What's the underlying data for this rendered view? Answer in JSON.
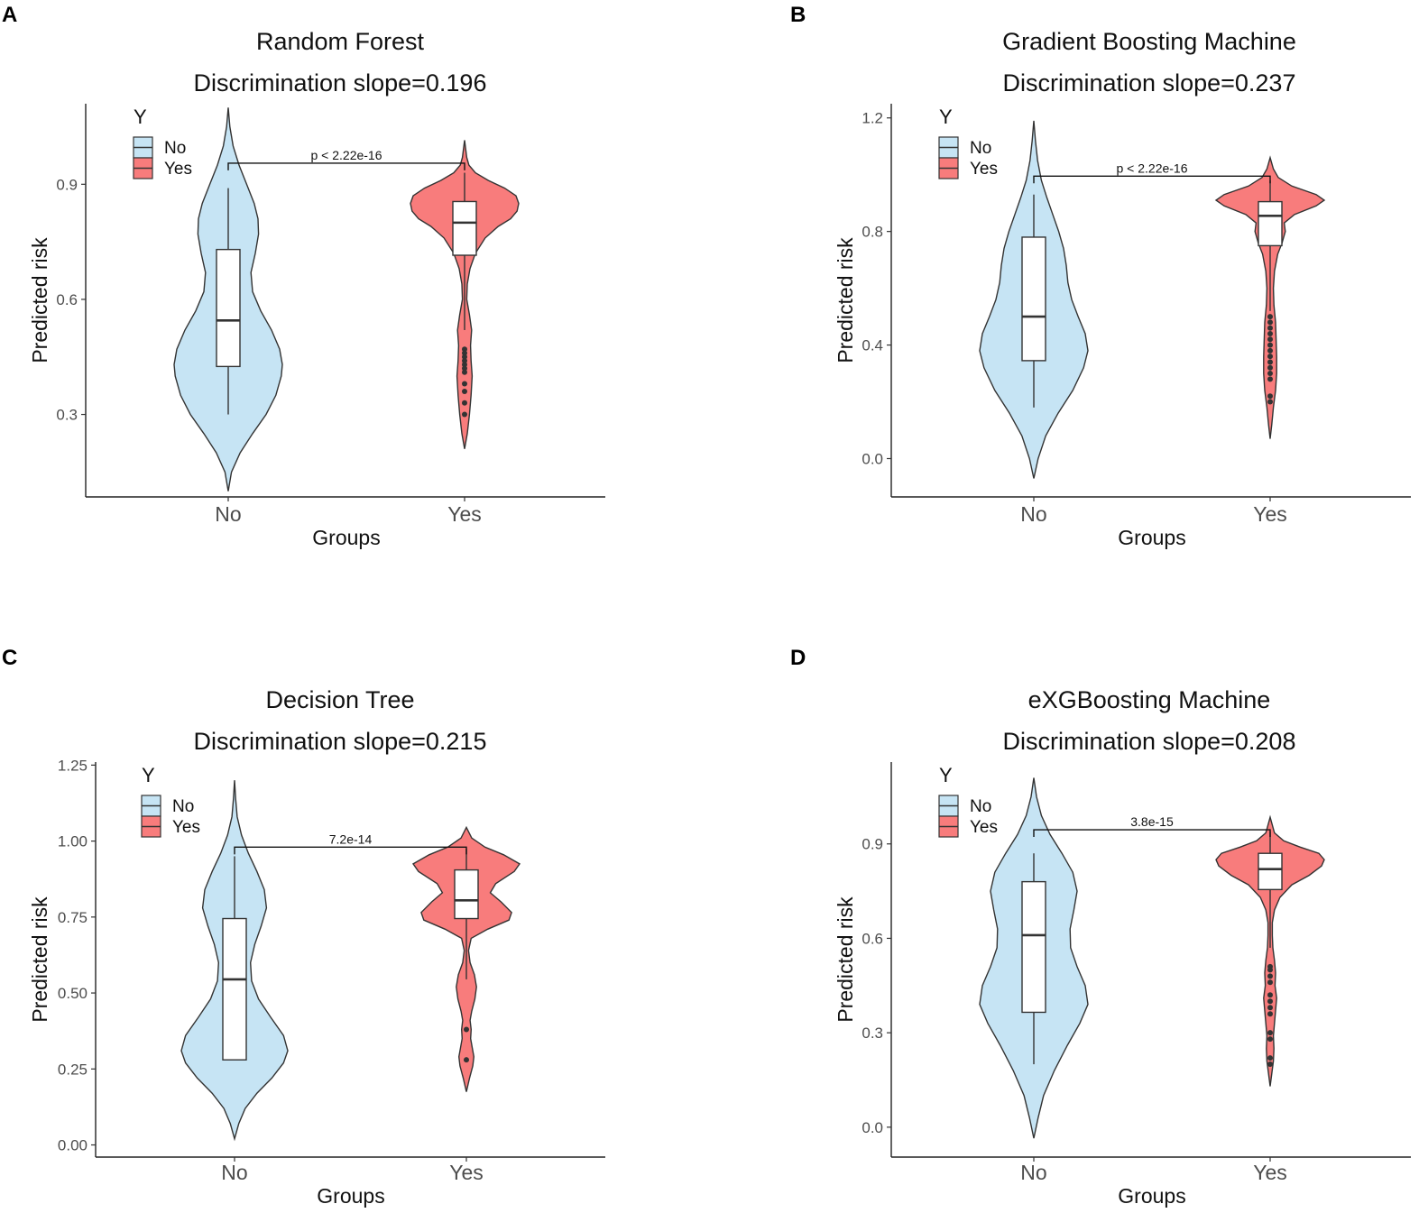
{
  "colors": {
    "No": "#c6e4f4",
    "Yes": "#f87c7c"
  },
  "chart_data": [
    {
      "type": "violin",
      "panel": "A",
      "title": "Random Forest",
      "subtitle": "Discrimination slope=0.196",
      "xlabel": "Groups",
      "ylabel": "Predicted risk",
      "categories": [
        "No",
        "Yes"
      ],
      "ylim": [
        0.085,
        1.11
      ],
      "yticks": [
        0.3,
        0.6,
        0.9
      ],
      "ytick_labels": [
        "0.3",
        "0.6",
        "0.9"
      ],
      "legend": {
        "title": "Y",
        "entries": [
          "No",
          "Yes"
        ]
      },
      "comparison": {
        "label": "p < 2.22e-16",
        "y": 0.955
      },
      "groups": [
        {
          "name": "No",
          "box": {
            "whisker_low": 0.3,
            "q1": 0.425,
            "median": 0.545,
            "q3": 0.73,
            "whisker_high": 0.89
          },
          "outliers": [],
          "density": [
            [
              0.1,
              0
            ],
            [
              0.15,
              0.06
            ],
            [
              0.2,
              0.22
            ],
            [
              0.25,
              0.45
            ],
            [
              0.3,
              0.7
            ],
            [
              0.35,
              0.88
            ],
            [
              0.4,
              0.98
            ],
            [
              0.43,
              1.0
            ],
            [
              0.47,
              0.95
            ],
            [
              0.52,
              0.8
            ],
            [
              0.57,
              0.6
            ],
            [
              0.62,
              0.45
            ],
            [
              0.67,
              0.42
            ],
            [
              0.72,
              0.5
            ],
            [
              0.77,
              0.56
            ],
            [
              0.81,
              0.55
            ],
            [
              0.85,
              0.48
            ],
            [
              0.9,
              0.34
            ],
            [
              0.95,
              0.2
            ],
            [
              1.0,
              0.09
            ],
            [
              1.05,
              0.03
            ],
            [
              1.1,
              0
            ]
          ]
        },
        {
          "name": "Yes",
          "box": {
            "whisker_low": 0.52,
            "q1": 0.715,
            "median": 0.8,
            "q3": 0.855,
            "whisker_high": 0.93
          },
          "outliers": [
            0.47,
            0.46,
            0.45,
            0.44,
            0.43,
            0.42,
            0.41,
            0.38,
            0.36,
            0.33,
            0.3
          ],
          "density": [
            [
              0.21,
              0
            ],
            [
              0.25,
              0.05
            ],
            [
              0.3,
              0.09
            ],
            [
              0.35,
              0.12
            ],
            [
              0.4,
              0.14
            ],
            [
              0.44,
              0.12
            ],
            [
              0.48,
              0.11
            ],
            [
              0.52,
              0.13
            ],
            [
              0.56,
              0.09
            ],
            [
              0.6,
              0.04
            ],
            [
              0.64,
              0.05
            ],
            [
              0.68,
              0.1
            ],
            [
              0.72,
              0.2
            ],
            [
              0.76,
              0.38
            ],
            [
              0.79,
              0.62
            ],
            [
              0.81,
              0.85
            ],
            [
              0.83,
              0.97
            ],
            [
              0.85,
              1.0
            ],
            [
              0.87,
              0.95
            ],
            [
              0.89,
              0.74
            ],
            [
              0.91,
              0.44
            ],
            [
              0.93,
              0.2
            ],
            [
              0.95,
              0.08
            ],
            [
              0.97,
              0.04
            ],
            [
              1.015,
              0
            ]
          ]
        }
      ]
    },
    {
      "type": "violin",
      "panel": "B",
      "title": "Gradient Boosting Machine",
      "subtitle": "Discrimination slope=0.237",
      "xlabel": "Groups",
      "ylabel": "Predicted risk",
      "categories": [
        "No",
        "Yes"
      ],
      "ylim": [
        -0.135,
        1.25
      ],
      "yticks": [
        0.0,
        0.4,
        0.8,
        1.2
      ],
      "ytick_labels": [
        "0.0",
        "0.4",
        "0.8",
        "1.2"
      ],
      "legend": {
        "title": "Y",
        "entries": [
          "No",
          "Yes"
        ]
      },
      "comparison": {
        "label": "p < 2.22e-16",
        "y": 0.995
      },
      "groups": [
        {
          "name": "No",
          "box": {
            "whisker_low": 0.18,
            "q1": 0.345,
            "median": 0.5,
            "q3": 0.78,
            "whisker_high": 0.93
          },
          "outliers": [],
          "density": [
            [
              -0.07,
              0
            ],
            [
              0.0,
              0.08
            ],
            [
              0.08,
              0.22
            ],
            [
              0.16,
              0.45
            ],
            [
              0.24,
              0.72
            ],
            [
              0.32,
              0.92
            ],
            [
              0.38,
              1.0
            ],
            [
              0.44,
              0.95
            ],
            [
              0.5,
              0.82
            ],
            [
              0.56,
              0.7
            ],
            [
              0.62,
              0.63
            ],
            [
              0.68,
              0.6
            ],
            [
              0.74,
              0.55
            ],
            [
              0.8,
              0.46
            ],
            [
              0.86,
              0.35
            ],
            [
              0.92,
              0.24
            ],
            [
              0.98,
              0.14
            ],
            [
              1.05,
              0.07
            ],
            [
              1.12,
              0.03
            ],
            [
              1.19,
              0
            ]
          ]
        },
        {
          "name": "Yes",
          "box": {
            "whisker_low": 0.52,
            "q1": 0.75,
            "median": 0.855,
            "q3": 0.905,
            "whisker_high": 0.98
          },
          "outliers": [
            0.5,
            0.48,
            0.46,
            0.44,
            0.42,
            0.4,
            0.38,
            0.36,
            0.34,
            0.32,
            0.3,
            0.28,
            0.22,
            0.2
          ],
          "density": [
            [
              0.07,
              0
            ],
            [
              0.12,
              0.03
            ],
            [
              0.18,
              0.06
            ],
            [
              0.24,
              0.1
            ],
            [
              0.3,
              0.12
            ],
            [
              0.36,
              0.12
            ],
            [
              0.42,
              0.11
            ],
            [
              0.48,
              0.1
            ],
            [
              0.54,
              0.07
            ],
            [
              0.6,
              0.06
            ],
            [
              0.66,
              0.08
            ],
            [
              0.72,
              0.14
            ],
            [
              0.76,
              0.22
            ],
            [
              0.8,
              0.28
            ],
            [
              0.83,
              0.26
            ],
            [
              0.86,
              0.45
            ],
            [
              0.89,
              0.85
            ],
            [
              0.91,
              1.0
            ],
            [
              0.93,
              0.85
            ],
            [
              0.96,
              0.4
            ],
            [
              0.99,
              0.15
            ],
            [
              1.02,
              0.06
            ],
            [
              1.06,
              0
            ]
          ]
        }
      ]
    },
    {
      "type": "violin",
      "panel": "C",
      "title": "Decision Tree",
      "subtitle": "Discrimination slope=0.215",
      "xlabel": "Groups",
      "ylabel": "Predicted risk",
      "categories": [
        "No",
        "Yes"
      ],
      "ylim": [
        -0.04,
        1.26
      ],
      "yticks": [
        0.0,
        0.25,
        0.5,
        0.75,
        1.0,
        1.25
      ],
      "ytick_labels": [
        "0.00",
        "0.25",
        "0.50",
        "0.75",
        "1.00",
        "1.25"
      ],
      "legend": {
        "title": "Y",
        "entries": [
          "No",
          "Yes"
        ]
      },
      "comparison": {
        "label": "7.2e-14",
        "y": 0.98
      },
      "groups": [
        {
          "name": "No",
          "box": {
            "whisker_low": 0.28,
            "q1": 0.28,
            "median": 0.545,
            "q3": 0.745,
            "whisker_high": 0.95
          },
          "outliers": [],
          "density": [
            [
              0.02,
              0
            ],
            [
              0.07,
              0.08
            ],
            [
              0.12,
              0.2
            ],
            [
              0.17,
              0.42
            ],
            [
              0.22,
              0.7
            ],
            [
              0.27,
              0.92
            ],
            [
              0.31,
              1.0
            ],
            [
              0.36,
              0.92
            ],
            [
              0.42,
              0.68
            ],
            [
              0.48,
              0.45
            ],
            [
              0.54,
              0.32
            ],
            [
              0.6,
              0.3
            ],
            [
              0.66,
              0.38
            ],
            [
              0.72,
              0.5
            ],
            [
              0.78,
              0.6
            ],
            [
              0.84,
              0.56
            ],
            [
              0.9,
              0.42
            ],
            [
              0.96,
              0.26
            ],
            [
              1.02,
              0.13
            ],
            [
              1.08,
              0.05
            ],
            [
              1.14,
              0.02
            ],
            [
              1.2,
              0
            ]
          ]
        },
        {
          "name": "Yes",
          "box": {
            "whisker_low": 0.545,
            "q1": 0.745,
            "median": 0.805,
            "q3": 0.905,
            "whisker_high": 0.975
          },
          "outliers": [
            0.38,
            0.28
          ],
          "density": [
            [
              0.175,
              0
            ],
            [
              0.22,
              0.06
            ],
            [
              0.26,
              0.12
            ],
            [
              0.29,
              0.14
            ],
            [
              0.32,
              0.11
            ],
            [
              0.35,
              0.08
            ],
            [
              0.38,
              0.09
            ],
            [
              0.41,
              0.07
            ],
            [
              0.44,
              0.1
            ],
            [
              0.48,
              0.16
            ],
            [
              0.52,
              0.19
            ],
            [
              0.56,
              0.15
            ],
            [
              0.6,
              0.07
            ],
            [
              0.64,
              0.04
            ],
            [
              0.68,
              0.09
            ],
            [
              0.71,
              0.4
            ],
            [
              0.74,
              0.8
            ],
            [
              0.765,
              0.85
            ],
            [
              0.8,
              0.65
            ],
            [
              0.83,
              0.45
            ],
            [
              0.86,
              0.55
            ],
            [
              0.9,
              0.9
            ],
            [
              0.925,
              1.0
            ],
            [
              0.955,
              0.7
            ],
            [
              0.98,
              0.35
            ],
            [
              1.01,
              0.1
            ],
            [
              1.045,
              0
            ]
          ]
        }
      ]
    },
    {
      "type": "violin",
      "panel": "D",
      "title": "eXGBoosting Machine",
      "subtitle": "Discrimination slope=0.208",
      "xlabel": "Groups",
      "ylabel": "Predicted risk",
      "categories": [
        "No",
        "Yes"
      ],
      "ylim": [
        -0.095,
        1.16
      ],
      "yticks": [
        0.0,
        0.3,
        0.6,
        0.9
      ],
      "ytick_labels": [
        "0.0",
        "0.3",
        "0.6",
        "0.9"
      ],
      "legend": {
        "title": "Y",
        "entries": [
          "No",
          "Yes"
        ]
      },
      "comparison": {
        "label": "3.8e-15",
        "y": 0.945
      },
      "groups": [
        {
          "name": "No",
          "box": {
            "whisker_low": 0.2,
            "q1": 0.365,
            "median": 0.61,
            "q3": 0.78,
            "whisker_high": 0.87
          },
          "outliers": [],
          "density": [
            [
              -0.035,
              0
            ],
            [
              0.03,
              0.08
            ],
            [
              0.1,
              0.18
            ],
            [
              0.18,
              0.38
            ],
            [
              0.26,
              0.62
            ],
            [
              0.33,
              0.85
            ],
            [
              0.39,
              1.0
            ],
            [
              0.45,
              0.95
            ],
            [
              0.51,
              0.8
            ],
            [
              0.57,
              0.68
            ],
            [
              0.63,
              0.67
            ],
            [
              0.69,
              0.74
            ],
            [
              0.75,
              0.8
            ],
            [
              0.81,
              0.72
            ],
            [
              0.87,
              0.52
            ],
            [
              0.93,
              0.3
            ],
            [
              0.99,
              0.14
            ],
            [
              1.05,
              0.05
            ],
            [
              1.11,
              0
            ]
          ]
        },
        {
          "name": "Yes",
          "box": {
            "whisker_low": 0.57,
            "q1": 0.755,
            "median": 0.82,
            "q3": 0.87,
            "whisker_high": 0.94
          },
          "outliers": [
            0.51,
            0.5,
            0.48,
            0.46,
            0.42,
            0.4,
            0.38,
            0.36,
            0.3,
            0.28,
            0.22,
            0.2
          ],
          "density": [
            [
              0.13,
              0
            ],
            [
              0.17,
              0.03
            ],
            [
              0.21,
              0.06
            ],
            [
              0.25,
              0.07
            ],
            [
              0.29,
              0.06
            ],
            [
              0.33,
              0.08
            ],
            [
              0.37,
              0.1
            ],
            [
              0.41,
              0.12
            ],
            [
              0.45,
              0.09
            ],
            [
              0.49,
              0.1
            ],
            [
              0.53,
              0.08
            ],
            [
              0.57,
              0.05
            ],
            [
              0.61,
              0.04
            ],
            [
              0.65,
              0.04
            ],
            [
              0.69,
              0.08
            ],
            [
              0.73,
              0.18
            ],
            [
              0.77,
              0.4
            ],
            [
              0.8,
              0.72
            ],
            [
              0.83,
              0.95
            ],
            [
              0.85,
              1.0
            ],
            [
              0.87,
              0.9
            ],
            [
              0.89,
              0.55
            ],
            [
              0.91,
              0.25
            ],
            [
              0.935,
              0.08
            ],
            [
              0.985,
              0
            ]
          ]
        }
      ]
    }
  ]
}
